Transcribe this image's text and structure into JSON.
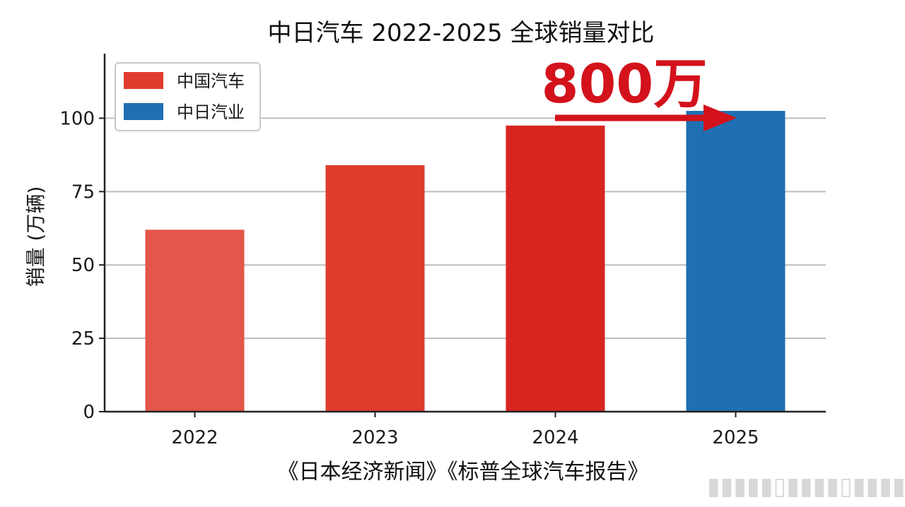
{
  "chart_data": {
    "type": "bar",
    "title": "中日汽车 2022-2025 全球销量对比",
    "ylabel": "销量 (万辆)",
    "xlabel": "",
    "categories": [
      "2022",
      "2023",
      "2024",
      "2025"
    ],
    "values": [
      62,
      84,
      97.5,
      102.5
    ],
    "bar_colors": [
      "#e4564a",
      "#e03c2e",
      "#d82520",
      "#1f6fb2"
    ],
    "ylim": [
      0,
      122
    ],
    "yticks": [
      0,
      25,
      50,
      75,
      100
    ],
    "grid": "horizontal",
    "legend_position": "top-left",
    "legend": [
      {
        "label": "中国汽车",
        "color": "#e03c2e"
      },
      {
        "label": "中日汽业",
        "color": "#1f6fb2"
      }
    ],
    "annotation": {
      "text": "800万",
      "color": "#d3121b",
      "arrow_to_category": "2025"
    },
    "source": "《日本经济新闻》《标普全球汽车报告》"
  }
}
